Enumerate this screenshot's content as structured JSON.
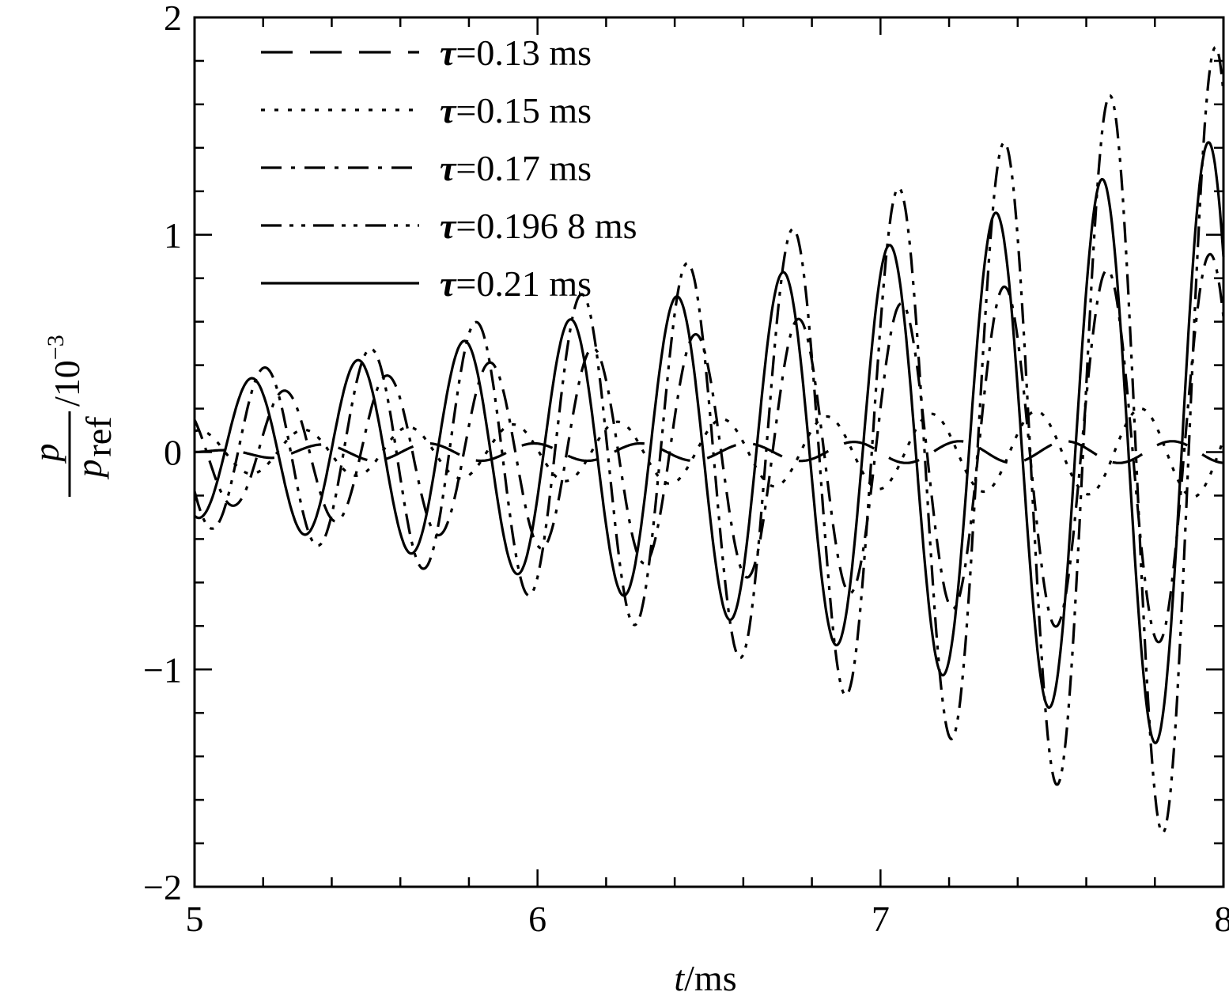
{
  "chart_data": {
    "type": "line",
    "xlabel": {
      "italic": "t",
      "rest": "/ms"
    },
    "ylabel": {
      "numerator": "p",
      "denominator": "p",
      "denominator_sub": "ref",
      "unit_base": "/10",
      "unit_exp": "−3"
    },
    "xlim": [
      5,
      8
    ],
    "ylim": [
      -2,
      2
    ],
    "xticks": [
      5,
      6,
      7,
      8
    ],
    "yticks": [
      -2,
      -1,
      0,
      1,
      2
    ],
    "xtick_labels": [
      "5",
      "6",
      "7",
      "8"
    ],
    "ytick_labels": [
      "−2",
      "−1",
      "0",
      "1",
      "2"
    ],
    "grid": false,
    "legend": "top-left",
    "series": [
      {
        "name": "τ=0.13 ms",
        "label_greek": "τ",
        "label_rest": "=0.13 ms",
        "dash": "long-dash",
        "x": [
          5.0,
          5.25,
          5.5,
          5.75,
          6.0,
          6.25,
          6.5,
          6.75,
          7.0,
          7.25,
          7.5,
          7.75,
          8.0
        ],
        "amplitude": [
          0.0,
          0.03,
          0.04,
          0.04,
          0.04,
          0.04,
          0.04,
          0.04,
          0.05,
          0.05,
          0.05,
          0.05,
          0.05
        ],
        "period": 0.31,
        "phase": 0.35
      },
      {
        "name": "τ=0.15 ms",
        "label_greek": "τ",
        "label_rest": "=0.15 ms",
        "dash": "dotted",
        "x": [
          5.0,
          5.25,
          5.5,
          5.75,
          6.0,
          6.25,
          6.5,
          6.75,
          7.0,
          7.25,
          7.5,
          7.75,
          8.0
        ],
        "amplitude": [
          0.1,
          0.1,
          0.11,
          0.12,
          0.13,
          0.14,
          0.15,
          0.16,
          0.17,
          0.18,
          0.19,
          0.2,
          0.21
        ],
        "period": 0.305,
        "phase": 1.3
      },
      {
        "name": "τ=0.17 ms",
        "label_greek": "τ",
        "label_rest": "=0.17 ms",
        "dash": "dash-dot",
        "x": [
          5.0,
          5.25,
          5.5,
          5.75,
          6.0,
          6.25,
          6.5,
          6.75,
          7.0,
          7.25,
          7.5,
          7.75,
          8.0
        ],
        "amplitude": [
          0.22,
          0.28,
          0.34,
          0.39,
          0.44,
          0.5,
          0.55,
          0.61,
          0.67,
          0.73,
          0.8,
          0.86,
          0.92
        ],
        "period": 0.3,
        "phase": 2.4
      },
      {
        "name": "τ=0.196 8 ms",
        "label_greek": "τ",
        "label_rest": "=0.196 8 ms",
        "dash": "dash-dot-dot",
        "x": [
          5.0,
          5.25,
          5.5,
          5.75,
          6.0,
          6.25,
          6.5,
          6.75,
          7.0,
          7.25,
          7.5,
          7.75,
          8.0
        ],
        "amplitude": [
          0.34,
          0.4,
          0.47,
          0.57,
          0.67,
          0.78,
          0.9,
          1.03,
          1.18,
          1.35,
          1.52,
          1.7,
          1.88
        ],
        "period": 0.308,
        "phase": 3.7
      },
      {
        "name": "τ=0.21 ms",
        "label_greek": "τ",
        "label_rest": "=0.21 ms",
        "dash": "solid",
        "x": [
          5.0,
          5.25,
          5.5,
          5.75,
          6.0,
          6.25,
          6.5,
          6.75,
          7.0,
          7.25,
          7.5,
          7.75,
          8.0
        ],
        "amplitude": [
          0.3,
          0.36,
          0.43,
          0.5,
          0.58,
          0.66,
          0.75,
          0.84,
          0.94,
          1.06,
          1.18,
          1.31,
          1.45
        ],
        "period": 0.31,
        "phase": 4.5
      }
    ]
  }
}
